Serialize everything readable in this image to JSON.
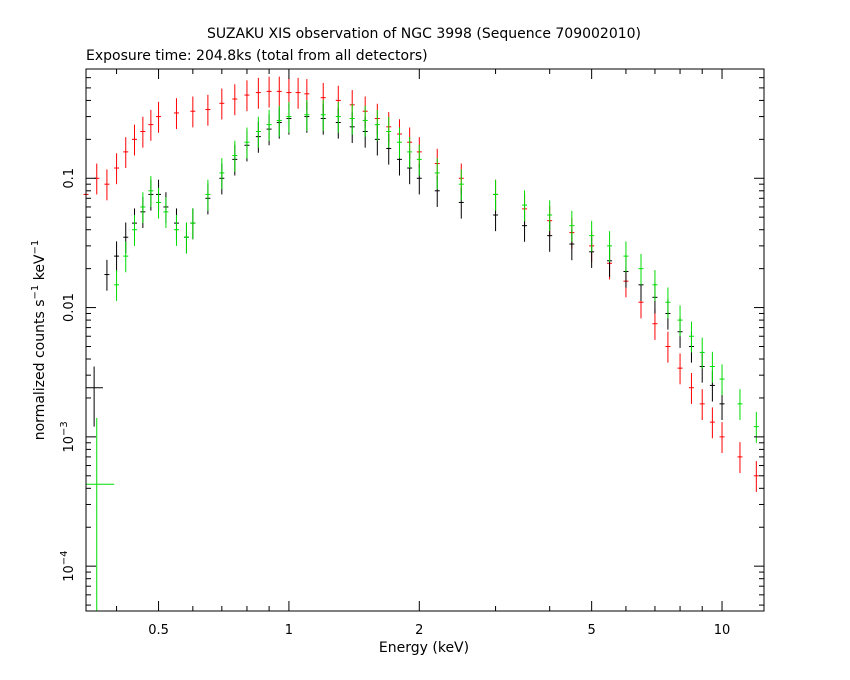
{
  "chart_data": {
    "type": "scatter",
    "title": "SUZAKU XIS observation of NGC 3998 (Sequence 709002010)",
    "subtitle": "Exposure time: 204.8ks (total from all detectors)",
    "xlabel": "Energy (keV)",
    "ylabel": "normalized counts s-1 keV-1",
    "ylabel_parts": {
      "main": "normalized counts s",
      "exp1": "−1",
      "mid": " keV",
      "exp2": "−1"
    },
    "x_scale": "log",
    "y_scale": "log",
    "xlim": [
      0.34,
      12.5
    ],
    "ylim": [
      4.5e-05,
      0.7
    ],
    "x_ticks": [
      {
        "value": 0.5,
        "label": "0.5"
      },
      {
        "value": 1,
        "label": "1"
      },
      {
        "value": 2,
        "label": "2"
      },
      {
        "value": 5,
        "label": "5"
      },
      {
        "value": 10,
        "label": "10"
      }
    ],
    "y_ticks": [
      {
        "value": 0.1,
        "label": "0.1",
        "base": "",
        "exp": ""
      },
      {
        "value": 0.01,
        "label": "0.01",
        "base": "",
        "exp": ""
      },
      {
        "value": 0.001,
        "label": "",
        "base": "10",
        "exp": "−3"
      },
      {
        "value": 0.0001,
        "label": "",
        "base": "10",
        "exp": "−4"
      }
    ],
    "grid": false,
    "series": [
      {
        "color": "#ff0000",
        "points": [
          [
            0.34,
            0.075
          ],
          [
            0.36,
            0.1
          ],
          [
            0.38,
            0.09
          ],
          [
            0.4,
            0.12
          ],
          [
            0.42,
            0.16
          ],
          [
            0.44,
            0.2
          ],
          [
            0.46,
            0.23
          ],
          [
            0.48,
            0.26
          ],
          [
            0.5,
            0.3
          ],
          [
            0.55,
            0.32
          ],
          [
            0.6,
            0.33
          ],
          [
            0.65,
            0.34
          ],
          [
            0.7,
            0.38
          ],
          [
            0.75,
            0.41
          ],
          [
            0.8,
            0.44
          ],
          [
            0.85,
            0.46
          ],
          [
            0.9,
            0.47
          ],
          [
            0.95,
            0.47
          ],
          [
            1.0,
            0.46
          ],
          [
            1.05,
            0.46
          ],
          [
            1.1,
            0.45
          ],
          [
            1.2,
            0.42
          ],
          [
            1.3,
            0.4
          ],
          [
            1.4,
            0.37
          ],
          [
            1.5,
            0.33
          ],
          [
            1.6,
            0.29
          ],
          [
            1.7,
            0.25
          ],
          [
            1.8,
            0.22
          ],
          [
            1.9,
            0.19
          ],
          [
            2.0,
            0.16
          ],
          [
            2.2,
            0.13
          ],
          [
            2.5,
            0.1
          ],
          [
            3.0,
            0.075
          ],
          [
            3.5,
            0.058
          ],
          [
            4.0,
            0.047
          ],
          [
            4.5,
            0.038
          ],
          [
            5.0,
            0.03
          ],
          [
            5.5,
            0.022
          ],
          [
            6.0,
            0.016
          ],
          [
            6.5,
            0.011
          ],
          [
            7.0,
            0.0075
          ],
          [
            7.5,
            0.005
          ],
          [
            8.0,
            0.0034
          ],
          [
            8.5,
            0.0024
          ],
          [
            9.0,
            0.0018
          ],
          [
            9.5,
            0.0013
          ],
          [
            10.0,
            0.001
          ],
          [
            11.0,
            0.0007
          ],
          [
            12.0,
            0.0005
          ]
        ]
      },
      {
        "color": "#000000",
        "points": [
          [
            0.38,
            0.018
          ],
          [
            0.4,
            0.025
          ],
          [
            0.42,
            0.035
          ],
          [
            0.44,
            0.045
          ],
          [
            0.46,
            0.055
          ],
          [
            0.48,
            0.075
          ],
          [
            0.5,
            0.075
          ],
          [
            0.52,
            0.06
          ],
          [
            0.55,
            0.045
          ],
          [
            0.58,
            0.035
          ],
          [
            0.6,
            0.045
          ],
          [
            0.65,
            0.07
          ],
          [
            0.7,
            0.1
          ],
          [
            0.75,
            0.14
          ],
          [
            0.8,
            0.18
          ],
          [
            0.85,
            0.21
          ],
          [
            0.9,
            0.24
          ],
          [
            0.95,
            0.27
          ],
          [
            1.0,
            0.29
          ],
          [
            1.1,
            0.3
          ],
          [
            1.2,
            0.29
          ],
          [
            1.3,
            0.27
          ],
          [
            1.4,
            0.25
          ],
          [
            1.5,
            0.23
          ],
          [
            1.6,
            0.2
          ],
          [
            1.7,
            0.17
          ],
          [
            1.8,
            0.14
          ],
          [
            1.9,
            0.12
          ],
          [
            2.0,
            0.1
          ],
          [
            2.2,
            0.08
          ],
          [
            2.5,
            0.065
          ],
          [
            3.0,
            0.052
          ],
          [
            3.5,
            0.043
          ],
          [
            4.0,
            0.036
          ],
          [
            4.5,
            0.031
          ],
          [
            5.0,
            0.027
          ],
          [
            5.5,
            0.023
          ],
          [
            6.0,
            0.019
          ],
          [
            6.5,
            0.015
          ],
          [
            7.0,
            0.012
          ],
          [
            7.5,
            0.009
          ],
          [
            8.0,
            0.0065
          ],
          [
            8.5,
            0.005
          ],
          [
            9.0,
            0.0035
          ],
          [
            9.5,
            0.0025
          ],
          [
            10.0,
            0.0018
          ]
        ]
      },
      {
        "color": "#00dd00",
        "points": [
          [
            0.4,
            0.015
          ],
          [
            0.42,
            0.025
          ],
          [
            0.44,
            0.04
          ],
          [
            0.46,
            0.06
          ],
          [
            0.48,
            0.08
          ],
          [
            0.5,
            0.065
          ],
          [
            0.52,
            0.055
          ],
          [
            0.55,
            0.04
          ],
          [
            0.58,
            0.035
          ],
          [
            0.6,
            0.045
          ],
          [
            0.65,
            0.075
          ],
          [
            0.7,
            0.11
          ],
          [
            0.75,
            0.15
          ],
          [
            0.8,
            0.19
          ],
          [
            0.85,
            0.23
          ],
          [
            0.9,
            0.26
          ],
          [
            0.95,
            0.28
          ],
          [
            1.0,
            0.3
          ],
          [
            1.1,
            0.31
          ],
          [
            1.2,
            0.31
          ],
          [
            1.3,
            0.3
          ],
          [
            1.4,
            0.29
          ],
          [
            1.5,
            0.28
          ],
          [
            1.6,
            0.26
          ],
          [
            1.7,
            0.23
          ],
          [
            1.8,
            0.19
          ],
          [
            1.9,
            0.16
          ],
          [
            2.0,
            0.14
          ],
          [
            2.2,
            0.11
          ],
          [
            2.5,
            0.09
          ],
          [
            3.0,
            0.075
          ],
          [
            3.5,
            0.062
          ],
          [
            4.0,
            0.052
          ],
          [
            4.5,
            0.043
          ],
          [
            5.0,
            0.036
          ],
          [
            5.5,
            0.03
          ],
          [
            6.0,
            0.025
          ],
          [
            6.5,
            0.02
          ],
          [
            7.0,
            0.015
          ],
          [
            7.5,
            0.011
          ],
          [
            8.0,
            0.008
          ],
          [
            8.5,
            0.006
          ],
          [
            9.0,
            0.0045
          ],
          [
            9.5,
            0.0035
          ],
          [
            10.0,
            0.0028
          ],
          [
            11.0,
            0.0018
          ],
          [
            12.0,
            0.0012
          ]
        ]
      }
    ],
    "highlighted_points": [
      {
        "color": "#000000",
        "x": 0.355,
        "y": 0.0024,
        "x_err": [
          0.34,
          0.372
        ],
        "y_err": [
          0.0012,
          0.0035
        ]
      },
      {
        "color": "#00dd00",
        "x": 0.36,
        "y": 0.00043,
        "x_err": [
          0.34,
          0.395
        ],
        "y_err": [
          4.5e-05,
          0.0014
        ]
      }
    ]
  }
}
